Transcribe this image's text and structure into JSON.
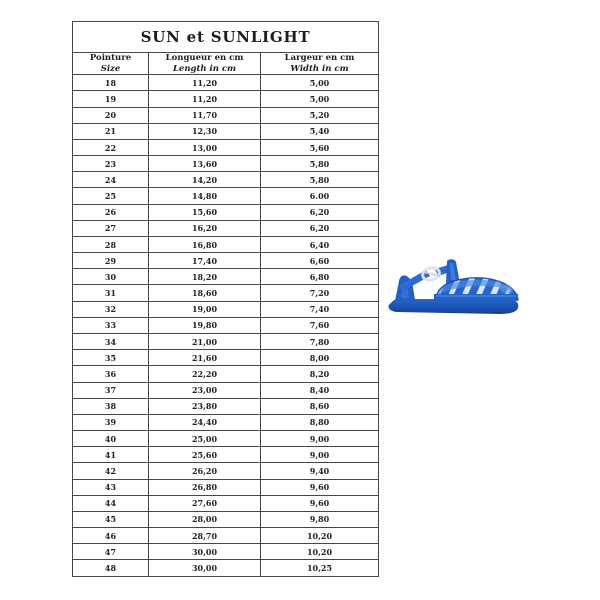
{
  "page": {
    "background": "#ffffff"
  },
  "size_chart": {
    "title": "SUN et SUNLIGHT",
    "columns": [
      {
        "fr": "Pointure",
        "en": "Size"
      },
      {
        "fr": "Longueur en cm",
        "en": "Length in cm"
      },
      {
        "fr": "Largeur en cm",
        "en": "Width in cm"
      }
    ],
    "rows": [
      {
        "size": "18",
        "length": "11,20",
        "width": "5,00"
      },
      {
        "size": "19",
        "length": "11,20",
        "width": "5,00"
      },
      {
        "size": "20",
        "length": "11,70",
        "width": "5,20"
      },
      {
        "size": "21",
        "length": "12,30",
        "width": "5,40"
      },
      {
        "size": "22",
        "length": "13,00",
        "width": "5,60"
      },
      {
        "size": "23",
        "length": "13,60",
        "width": "5,80"
      },
      {
        "size": "24",
        "length": "14,20",
        "width": "5,80"
      },
      {
        "size": "25",
        "length": "14,80",
        "width": "6.00"
      },
      {
        "size": "26",
        "length": "15,60",
        "width": "6,20"
      },
      {
        "size": "27",
        "length": "16,20",
        "width": "6,20"
      },
      {
        "size": "28",
        "length": "16,80",
        "width": "6,40"
      },
      {
        "size": "29",
        "length": "17,40",
        "width": "6,60"
      },
      {
        "size": "30",
        "length": "18,20",
        "width": "6,80"
      },
      {
        "size": "31",
        "length": "18,60",
        "width": "7,20"
      },
      {
        "size": "32",
        "length": "19,00",
        "width": "7,40"
      },
      {
        "size": "33",
        "length": "19,80",
        "width": "7,60"
      },
      {
        "size": "34",
        "length": "21,00",
        "width": "7,80"
      },
      {
        "size": "35",
        "length": "21,60",
        "width": "8,00"
      },
      {
        "size": "36",
        "length": "22,20",
        "width": "8,20"
      },
      {
        "size": "37",
        "length": "23,00",
        "width": "8,40"
      },
      {
        "size": "38",
        "length": "23,80",
        "width": "8,60"
      },
      {
        "size": "39",
        "length": "24,40",
        "width": "8,80"
      },
      {
        "size": "40",
        "length": "25,00",
        "width": "9,00"
      },
      {
        "size": "41",
        "length": "25,60",
        "width": "9,00"
      },
      {
        "size": "42",
        "length": "26,20",
        "width": "9,40"
      },
      {
        "size": "43",
        "length": "26,80",
        "width": "9,60"
      },
      {
        "size": "44",
        "length": "27,60",
        "width": "9,60"
      },
      {
        "size": "45",
        "length": "28,00",
        "width": "9,80"
      },
      {
        "size": "46",
        "length": "28,70",
        "width": "10,20"
      },
      {
        "size": "47",
        "length": "30,00",
        "width": "10,20"
      },
      {
        "size": "48",
        "length": "30,00",
        "width": "10,25"
      }
    ]
  },
  "product_image": {
    "name": "blue-jelly-sandal",
    "colors": {
      "main_blue": "#2160c4",
      "dark_blue": "#16428f",
      "light_blue": "#5b93e0",
      "strap_gap": "#d9e4f4",
      "buckle_silver": "#dfe3ec"
    }
  },
  "style": {
    "border_color": "#474747",
    "text_color": "#1d1d1d"
  }
}
